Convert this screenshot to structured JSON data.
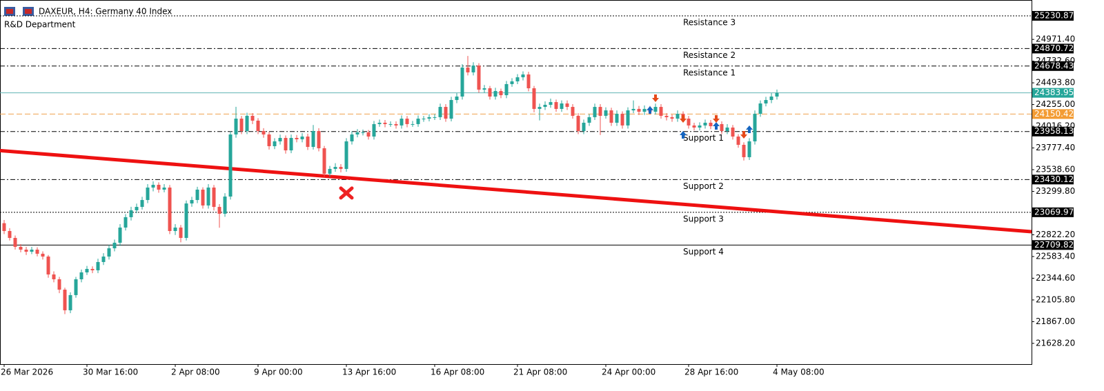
{
  "chart_data": {
    "type": "candlestick",
    "title": "DAXEUR, H4:  Germany 40 Index",
    "subtitle": "R&D Department",
    "up_color": "#26a69a",
    "down_color": "#ef5350",
    "ylim": [
      21400,
      25405
    ],
    "yticks": [
      {
        "value": 24971.4,
        "label": "24971.40"
      },
      {
        "value": 24732.6,
        "label": "24732.60"
      },
      {
        "value": 24493.8,
        "label": "24493.80"
      },
      {
        "value": 24255,
        "label": "24255.00"
      },
      {
        "value": 24016.2,
        "label": "24016.20"
      },
      {
        "value": 23777.4,
        "label": "23777.40"
      },
      {
        "value": 23538.6,
        "label": "23538.60"
      },
      {
        "value": 23299.8,
        "label": "23299.80"
      },
      {
        "value": 22822.2,
        "label": "22822.20"
      },
      {
        "value": 22583.4,
        "label": "22583.40"
      },
      {
        "value": 22344.6,
        "label": "22344.60"
      },
      {
        "value": 22105.8,
        "label": "22105.80"
      },
      {
        "value": 21867,
        "label": "21867.00"
      },
      {
        "value": 21628.2,
        "label": "21628.20"
      }
    ],
    "categories": [
      "26 Mar 2026",
      null,
      null,
      null,
      null,
      null,
      null,
      null,
      null,
      null,
      null,
      null,
      null,
      null,
      null,
      "30 Mar 16:00",
      null,
      null,
      null,
      null,
      null,
      null,
      null,
      null,
      null,
      null,
      null,
      null,
      null,
      null,
      null,
      "2 Apr 08:00",
      null,
      null,
      null,
      null,
      null,
      null,
      null,
      null,
      null,
      null,
      null,
      null,
      null,
      null,
      "9 Apr 00:00",
      null,
      null,
      null,
      null,
      null,
      null,
      null,
      null,
      null,
      null,
      null,
      null,
      null,
      null,
      null,
      "13 Apr 16:00",
      null,
      null,
      null,
      null,
      null,
      null,
      null,
      null,
      null,
      null,
      null,
      null,
      null,
      null,
      null,
      "16 Apr 08:00",
      null,
      null,
      null,
      null,
      null,
      null,
      null,
      null,
      null,
      null,
      null,
      null,
      null,
      null,
      "21 Apr 08:00",
      null,
      null,
      null,
      null,
      null,
      null,
      null,
      null,
      null,
      null,
      null,
      null,
      null,
      null,
      null,
      "24 Apr 00:00",
      null,
      null,
      null,
      null,
      null,
      null,
      null,
      null,
      null,
      null,
      null,
      null,
      null,
      null,
      "28 Apr 16:00",
      null,
      null,
      null,
      null,
      null,
      null,
      null,
      null,
      null,
      null,
      null,
      null,
      null,
      null,
      null,
      "4 May 08:00"
    ],
    "candles": [
      [
        22950,
        22985,
        22830,
        22864
      ],
      [
        22864,
        22895,
        22760,
        22788
      ],
      [
        22788,
        22815,
        22660,
        22690
      ],
      [
        22690,
        22720,
        22630,
        22659
      ],
      [
        22659,
        22690,
        22600,
        22636
      ],
      [
        22636,
        22690,
        22610,
        22659
      ],
      [
        22659,
        22685,
        22585,
        22614
      ],
      [
        22614,
        22640,
        22550,
        22583
      ],
      [
        22583,
        22600,
        22350,
        22386
      ],
      [
        22386,
        22420,
        22300,
        22333
      ],
      [
        22333,
        22360,
        22180,
        22219
      ],
      [
        22219,
        22240,
        21950,
        21992
      ],
      [
        21992,
        22190,
        21960,
        22159
      ],
      [
        22159,
        22360,
        22130,
        22333
      ],
      [
        22333,
        22440,
        22300,
        22409
      ],
      [
        22409,
        22480,
        22380,
        22447
      ],
      [
        22447,
        22475,
        22400,
        22432
      ],
      [
        22432,
        22560,
        22400,
        22523
      ],
      [
        22523,
        22620,
        22490,
        22583
      ],
      [
        22583,
        22710,
        22550,
        22674
      ],
      [
        22674,
        22770,
        22640,
        22735
      ],
      [
        22735,
        22940,
        22700,
        22902
      ],
      [
        22902,
        23050,
        22870,
        23016
      ],
      [
        23016,
        23130,
        22980,
        23092
      ],
      [
        23092,
        23165,
        23060,
        23129
      ],
      [
        23129,
        23240,
        23100,
        23205
      ],
      [
        23205,
        23380,
        23170,
        23342
      ],
      [
        23342,
        23410,
        23300,
        23372
      ],
      [
        23372,
        23400,
        23285,
        23319
      ],
      [
        23319,
        23380,
        23290,
        23342
      ],
      [
        23342,
        23370,
        22830,
        22864
      ],
      [
        22864,
        22940,
        22820,
        22902
      ],
      [
        22902,
        22930,
        22740,
        22788
      ],
      [
        22788,
        23200,
        22760,
        23167
      ],
      [
        23167,
        23240,
        23130,
        23205
      ],
      [
        23205,
        23350,
        23170,
        23319
      ],
      [
        23319,
        23345,
        23110,
        23145
      ],
      [
        23145,
        23380,
        23110,
        23342
      ],
      [
        23342,
        23370,
        23090,
        23129
      ],
      [
        23129,
        23160,
        22900,
        23054
      ],
      [
        23054,
        23280,
        23020,
        23243
      ],
      [
        23243,
        23960,
        23210,
        23926
      ],
      [
        23926,
        24230,
        23890,
        24100
      ],
      [
        24100,
        24130,
        23930,
        23964
      ],
      [
        23964,
        24165,
        23930,
        24131
      ],
      [
        24131,
        24160,
        24040,
        24078
      ],
      [
        24078,
        24105,
        23930,
        23964
      ],
      [
        23964,
        23995,
        23890,
        23926
      ],
      [
        23926,
        23955,
        23760,
        23797
      ],
      [
        23797,
        23885,
        23765,
        23850
      ],
      [
        23850,
        23925,
        23815,
        23888
      ],
      [
        23888,
        23915,
        23715,
        23751
      ],
      [
        23751,
        23925,
        23720,
        23888
      ],
      [
        23888,
        23920,
        23840,
        23873
      ],
      [
        23873,
        23940,
        23840,
        23903
      ],
      [
        23903,
        23935,
        23755,
        23789
      ],
      [
        23789,
        24030,
        23760,
        23964
      ],
      [
        23964,
        23995,
        23740,
        23774
      ],
      [
        23774,
        23800,
        23460,
        23494
      ],
      [
        23494,
        23580,
        23460,
        23547
      ],
      [
        23547,
        23610,
        23515,
        23569
      ],
      [
        23569,
        23600,
        23510,
        23547
      ],
      [
        23547,
        23885,
        23515,
        23850
      ],
      [
        23850,
        23960,
        23815,
        23926
      ],
      [
        23926,
        23985,
        23895,
        23949
      ],
      [
        23949,
        23980,
        23915,
        23949
      ],
      [
        23949,
        23975,
        23870,
        23903
      ],
      [
        23903,
        24075,
        23870,
        24040
      ],
      [
        24040,
        24090,
        24010,
        24055
      ],
      [
        24055,
        24085,
        24005,
        24040
      ],
      [
        24040,
        24070,
        24010,
        24040
      ],
      [
        24040,
        24070,
        23990,
        24025
      ],
      [
        24025,
        24135,
        23990,
        24100
      ],
      [
        24100,
        24130,
        24005,
        24040
      ],
      [
        24040,
        24075,
        24010,
        24040
      ],
      [
        24040,
        24135,
        24010,
        24100
      ],
      [
        24100,
        24130,
        24065,
        24100
      ],
      [
        24100,
        24150,
        24070,
        24116
      ],
      [
        24116,
        24150,
        24085,
        24116
      ],
      [
        24116,
        24265,
        24085,
        24229
      ],
      [
        24229,
        24260,
        24065,
        24100
      ],
      [
        24100,
        24340,
        24070,
        24305
      ],
      [
        24305,
        24380,
        24270,
        24343
      ],
      [
        24343,
        24700,
        24310,
        24662
      ],
      [
        24662,
        24790,
        24575,
        24609
      ],
      [
        24609,
        24720,
        24575,
        24684
      ],
      [
        24684,
        24710,
        24385,
        24419
      ],
      [
        24419,
        24470,
        24385,
        24434
      ],
      [
        24434,
        24460,
        24310,
        24343
      ],
      [
        24343,
        24440,
        24310,
        24404
      ],
      [
        24404,
        24430,
        24325,
        24358
      ],
      [
        24358,
        24515,
        24325,
        24480
      ],
      [
        24480,
        24545,
        24450,
        24510
      ],
      [
        24510,
        24590,
        24480,
        24555
      ],
      [
        24555,
        24620,
        24520,
        24586
      ],
      [
        24586,
        24615,
        24400,
        24434
      ],
      [
        24434,
        24460,
        24170,
        24207
      ],
      [
        24207,
        24265,
        24080,
        24229
      ],
      [
        24229,
        24290,
        24195,
        24252
      ],
      [
        24252,
        24320,
        24220,
        24282
      ],
      [
        24282,
        24310,
        24175,
        24207
      ],
      [
        24207,
        24300,
        24175,
        24267
      ],
      [
        24267,
        24300,
        24195,
        24229
      ],
      [
        24229,
        24260,
        24100,
        24131
      ],
      [
        24131,
        24160,
        23930,
        23964
      ],
      [
        23964,
        24090,
        23930,
        24055
      ],
      [
        24055,
        24150,
        24020,
        24116
      ],
      [
        24116,
        24265,
        24085,
        24229
      ],
      [
        24229,
        24260,
        23920,
        24131
      ],
      [
        24131,
        24225,
        24100,
        24191
      ],
      [
        24191,
        24220,
        24020,
        24055
      ],
      [
        24055,
        24190,
        24020,
        24153
      ],
      [
        24153,
        24180,
        23990,
        24025
      ],
      [
        24025,
        24225,
        23990,
        24191
      ],
      [
        24191,
        24300,
        24160,
        24207
      ],
      [
        24207,
        24240,
        24140,
        24176
      ],
      [
        24176,
        24245,
        24140,
        24207
      ],
      [
        24207,
        24240,
        24145,
        24176
      ],
      [
        24176,
        24265,
        24145,
        24229
      ],
      [
        24229,
        24260,
        24100,
        24131
      ],
      [
        24131,
        24160,
        24080,
        24116
      ],
      [
        24116,
        24145,
        24065,
        24100
      ],
      [
        24100,
        24190,
        24065,
        24153
      ],
      [
        24153,
        24180,
        24065,
        24100
      ],
      [
        24100,
        24130,
        23990,
        24025
      ],
      [
        24025,
        24055,
        23970,
        24002
      ],
      [
        24002,
        24060,
        23970,
        24025
      ],
      [
        24025,
        24090,
        23990,
        24055
      ],
      [
        24055,
        24085,
        23985,
        24017
      ],
      [
        24017,
        24075,
        23985,
        24040
      ],
      [
        24040,
        24070,
        23930,
        23964
      ],
      [
        23964,
        24040,
        23930,
        24002
      ],
      [
        24002,
        24030,
        23870,
        23903
      ],
      [
        23903,
        23930,
        23780,
        23812
      ],
      [
        23812,
        23840,
        23640,
        23676
      ],
      [
        23676,
        23885,
        23645,
        23850
      ],
      [
        23850,
        24190,
        23815,
        24153
      ],
      [
        24153,
        24300,
        24120,
        24267
      ],
      [
        24267,
        24340,
        24235,
        24305
      ],
      [
        24305,
        24380,
        24270,
        24343
      ],
      [
        24343,
        24420,
        24310,
        24384
      ]
    ],
    "levels": [
      {
        "name": "Resistance 3",
        "price": 25230.87,
        "style": "dotted",
        "color": "#000000",
        "tag_color": "#000000"
      },
      {
        "name": "Resistance 2",
        "price": 24870.72,
        "style": "dashdot",
        "color": "#000000",
        "tag_color": "#000000"
      },
      {
        "name": "Resistance 1",
        "price": 24678.43,
        "style": "dashdot",
        "color": "#000000",
        "tag_color": "#000000"
      },
      {
        "price": 24383.95,
        "style": "solid",
        "color": "#5fb3b3",
        "tag_color": "#26a69a"
      },
      {
        "price": 24150.42,
        "style": "dashed",
        "color": "#f0a04b",
        "tag_color": "#f39c34"
      },
      {
        "name": "Support 1",
        "price": 23958.13,
        "style": "dashdot",
        "color": "#000000",
        "tag_color": "#000000"
      },
      {
        "name": "Support 2",
        "price": 23430.12,
        "style": "dashdot",
        "color": "#000000",
        "tag_color": "#000000"
      },
      {
        "name": "Support 3",
        "price": 23069.97,
        "style": "dotted",
        "color": "#000000",
        "tag_color": "#000000"
      },
      {
        "name": "Support 4",
        "price": 22709.82,
        "style": "solid",
        "color": "#000000",
        "tag_color": "#000000"
      }
    ],
    "trendline": {
      "color": "#ee1111",
      "from": {
        "index": 0,
        "price": 23745
      },
      "to": {
        "index": 186,
        "price": 22857
      }
    },
    "cross": {
      "index": 62,
      "price": 23282,
      "color": "#ee2222"
    },
    "buy_signals": [
      {
        "index": 117,
        "price": 24192
      },
      {
        "index": 123,
        "price": 23918
      },
      {
        "index": 129,
        "price": 24017
      },
      {
        "index": 135,
        "price": 23979
      }
    ],
    "sell_signals": [
      {
        "index": 118,
        "price": 24328
      },
      {
        "index": 123,
        "price": 24100
      },
      {
        "index": 129,
        "price": 24100
      },
      {
        "index": 134,
        "price": 23926
      }
    ],
    "buy_color": "#1565c0",
    "sell_color": "#e64a19"
  }
}
